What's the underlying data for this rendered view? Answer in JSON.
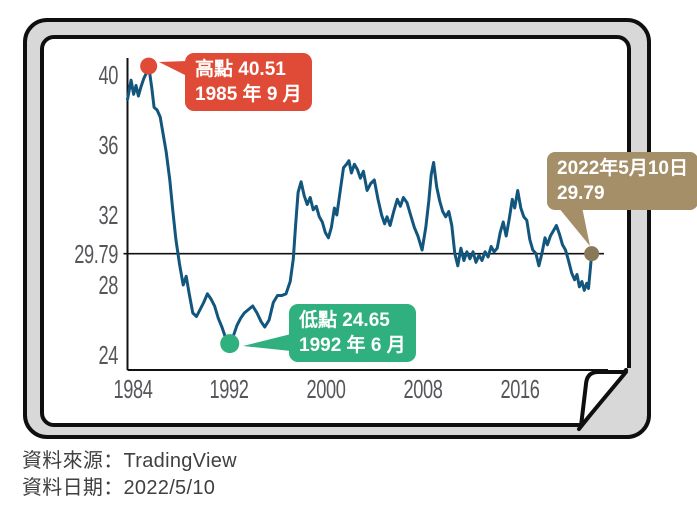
{
  "colors": {
    "line": "#12557D",
    "axis": "#111111",
    "tick_label": "#55565A",
    "high": "#DF4B36",
    "low": "#2FB07E",
    "current_box": "#A48F68",
    "current_dot": "#8A7958",
    "frame_border": "#0F0F0F",
    "frame_shade": "#D8D8D8",
    "footer_text": "#3F4042"
  },
  "chart_data": {
    "type": "line",
    "title": "",
    "xlabel": "",
    "ylabel": "",
    "grid": false,
    "legend": "none",
    "ylim": [
      23.1,
      41.0
    ],
    "xlim": [
      1984,
      2022.75
    ],
    "reference_line": 29.79,
    "y_ticks": [
      {
        "label": "40",
        "value": 40
      },
      {
        "label": "36",
        "value": 36
      },
      {
        "label": "32",
        "value": 32
      },
      {
        "label": "29.79",
        "value": 29.79
      },
      {
        "label": "28",
        "value": 28
      },
      {
        "label": "24",
        "value": 24
      }
    ],
    "x_ticks": [
      {
        "label": "1984",
        "value": 1984
      },
      {
        "label": "1992",
        "value": 1992
      },
      {
        "label": "2000",
        "value": 2000
      },
      {
        "label": "2008",
        "value": 2008
      },
      {
        "label": "2016",
        "value": 2016
      }
    ],
    "x": [
      1984.0,
      1984.3,
      1984.5,
      1984.7,
      1984.9,
      1985.1,
      1985.35,
      1985.55,
      1985.75,
      1986.0,
      1986.2,
      1986.45,
      1986.7,
      1986.9,
      1987.2,
      1987.5,
      1987.75,
      1988.0,
      1988.3,
      1988.6,
      1988.85,
      1989.1,
      1989.4,
      1989.7,
      1990.0,
      1990.3,
      1990.6,
      1990.9,
      1991.2,
      1991.5,
      1991.8,
      1992.1,
      1992.45,
      1992.75,
      1993.05,
      1993.35,
      1993.65,
      1994.0,
      1994.35,
      1994.7,
      1995.05,
      1995.35,
      1995.7,
      1996.05,
      1996.4,
      1996.75,
      1997.1,
      1997.45,
      1997.7,
      1997.9,
      1998.1,
      1998.35,
      1998.6,
      1998.85,
      1999.1,
      1999.35,
      1999.6,
      1999.85,
      2000.1,
      2000.35,
      2000.6,
      2000.85,
      2001.1,
      2001.3,
      2001.6,
      2001.85,
      2002.1,
      2002.3,
      2002.5,
      2002.75,
      2003.0,
      2003.25,
      2003.5,
      2003.8,
      2004.1,
      2004.4,
      2004.7,
      2005.0,
      2005.25,
      2005.45,
      2005.7,
      2006.0,
      2006.3,
      2006.55,
      2006.8,
      2007.1,
      2007.4,
      2007.7,
      2008.0,
      2008.35,
      2008.65,
      2008.9,
      2009.1,
      2009.3,
      2009.55,
      2009.8,
      2010.05,
      2010.3,
      2010.55,
      2010.8,
      2011.05,
      2011.3,
      2011.55,
      2011.8,
      2012.05,
      2012.3,
      2012.55,
      2012.8,
      2013.05,
      2013.3,
      2013.55,
      2013.8,
      2014.05,
      2014.3,
      2014.55,
      2014.8,
      2015.05,
      2015.3,
      2015.55,
      2015.8,
      2016.0,
      2016.25,
      2016.5,
      2016.75,
      2017.0,
      2017.25,
      2017.5,
      2017.75,
      2018.0,
      2018.25,
      2018.5,
      2018.7,
      2018.95,
      2019.2,
      2019.45,
      2019.7,
      2019.95,
      2020.2,
      2020.45,
      2020.7,
      2020.95,
      2021.15,
      2021.35,
      2021.55,
      2021.75,
      2021.95,
      2022.1,
      2022.36
    ],
    "values": [
      38.6,
      39.7,
      38.9,
      39.4,
      38.8,
      39.3,
      39.8,
      40.1,
      40.51,
      39.3,
      38.15,
      38.0,
      37.6,
      36.8,
      35.6,
      34.0,
      32.2,
      30.6,
      29.2,
      28.0,
      28.5,
      27.5,
      26.4,
      26.2,
      26.6,
      27.0,
      27.5,
      27.2,
      26.8,
      26.1,
      25.6,
      25.0,
      24.65,
      25.1,
      25.7,
      26.1,
      26.4,
      26.6,
      26.8,
      26.4,
      25.9,
      25.6,
      26.0,
      27.0,
      27.4,
      27.4,
      27.5,
      28.2,
      29.5,
      31.5,
      33.3,
      33.9,
      33.1,
      32.6,
      33.0,
      32.3,
      32.5,
      31.9,
      31.6,
      31.0,
      30.7,
      31.3,
      32.4,
      32.0,
      33.5,
      34.7,
      34.9,
      35.1,
      34.4,
      34.9,
      34.6,
      34.1,
      34.5,
      33.4,
      33.8,
      34.0,
      32.9,
      32.0,
      31.5,
      31.9,
      31.4,
      32.2,
      32.9,
      32.5,
      33.0,
      32.7,
      32.0,
      31.3,
      30.8,
      30.0,
      31.3,
      32.8,
      34.3,
      35.0,
      33.6,
      32.8,
      32.2,
      31.9,
      32.2,
      31.4,
      29.8,
      29.1,
      30.1,
      29.4,
      29.9,
      29.5,
      29.9,
      29.3,
      29.7,
      29.4,
      29.9,
      29.6,
      30.2,
      29.9,
      30.1,
      31.0,
      31.6,
      30.8,
      31.8,
      32.9,
      32.4,
      33.4,
      32.4,
      31.9,
      31.7,
      30.6,
      30.0,
      29.8,
      29.1,
      29.8,
      30.7,
      30.3,
      30.8,
      31.1,
      31.4,
      30.9,
      30.3,
      30.0,
      29.4,
      28.7,
      28.3,
      28.6,
      27.9,
      28.2,
      27.7,
      28.1,
      27.8,
      29.79
    ],
    "annotations": {
      "high": {
        "line1": "高點 40.51",
        "line2": "1985 年 9 月",
        "value": 40.51,
        "x": 1985.75
      },
      "low": {
        "line1": "低點 24.65",
        "line2": "1992 年 6 月",
        "value": 24.65,
        "x": 1992.45
      },
      "current": {
        "line1": "2022年5月10日",
        "line2": "29.79",
        "value": 29.79,
        "x": 2022.36
      }
    }
  },
  "footer": {
    "source": "資料來源：TradingView",
    "date": "資料日期：2022/5/10"
  }
}
